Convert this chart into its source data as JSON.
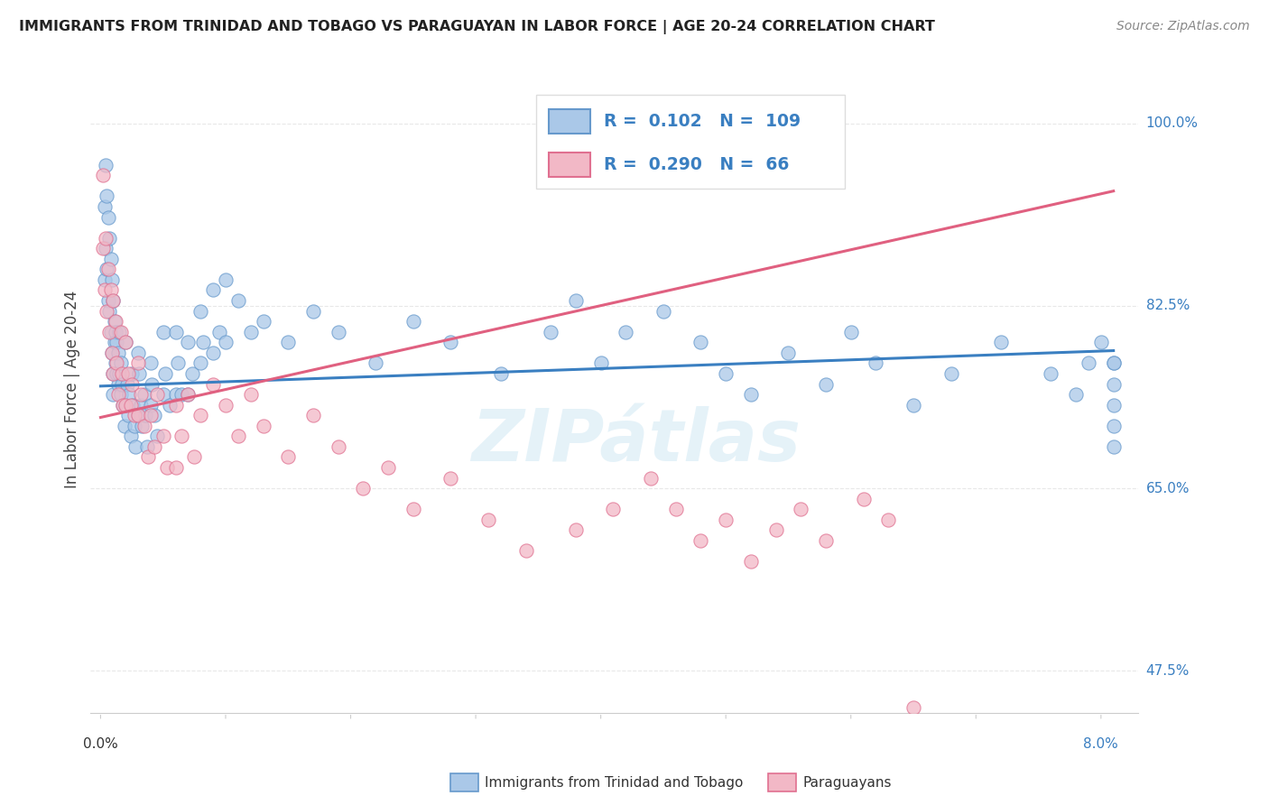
{
  "title": "IMMIGRANTS FROM TRINIDAD AND TOBAGO VS PARAGUAYAN IN LABOR FORCE | AGE 20-24 CORRELATION CHART",
  "source": "Source: ZipAtlas.com",
  "ylabel": "In Labor Force | Age 20-24",
  "bg_color": "#ffffff",
  "watermark": "ZIPátlas",
  "xlim_min": -0.0008,
  "xlim_max": 0.083,
  "ylim_min": 0.435,
  "ylim_max": 1.055,
  "ytick_positions": [
    0.475,
    0.65,
    0.825,
    1.0
  ],
  "ytick_labels": [
    "47.5%",
    "65.0%",
    "82.5%",
    "100.0%"
  ],
  "grid_color": "#e8e8e8",
  "axis_color": "#cccccc",
  "series": [
    {
      "name": "Immigrants from Trinidad and Tobago",
      "R": "0.102",
      "N": "109",
      "dot_color": "#aac8e8",
      "dot_edge_color": "#6699cc",
      "trend_color": "#3a7fc1",
      "trend_x0": 0.0,
      "trend_x1": 0.081,
      "trend_y0": 0.748,
      "trend_y1": 0.782,
      "x": [
        0.0003,
        0.0003,
        0.0004,
        0.0004,
        0.0005,
        0.0005,
        0.0006,
        0.0006,
        0.0007,
        0.0007,
        0.0008,
        0.0008,
        0.0009,
        0.0009,
        0.001,
        0.001,
        0.001,
        0.0011,
        0.0011,
        0.0012,
        0.0012,
        0.0013,
        0.0013,
        0.0014,
        0.0014,
        0.0015,
        0.0015,
        0.0016,
        0.0016,
        0.0017,
        0.0018,
        0.0019,
        0.002,
        0.002,
        0.0021,
        0.0022,
        0.0023,
        0.0024,
        0.0025,
        0.0026,
        0.0027,
        0.0028,
        0.003,
        0.003,
        0.0031,
        0.0032,
        0.0033,
        0.0035,
        0.0036,
        0.0037,
        0.004,
        0.004,
        0.0041,
        0.0043,
        0.0045,
        0.005,
        0.005,
        0.0052,
        0.0055,
        0.006,
        0.006,
        0.0062,
        0.0065,
        0.007,
        0.007,
        0.0073,
        0.008,
        0.008,
        0.0082,
        0.009,
        0.009,
        0.0095,
        0.01,
        0.01,
        0.011,
        0.012,
        0.013,
        0.015,
        0.017,
        0.019,
        0.022,
        0.025,
        0.028,
        0.032,
        0.036,
        0.038,
        0.04,
        0.042,
        0.045,
        0.048,
        0.05,
        0.052,
        0.055,
        0.058,
        0.06,
        0.062,
        0.065,
        0.068,
        0.072,
        0.076,
        0.078,
        0.079,
        0.08,
        0.081,
        0.081,
        0.081,
        0.081,
        0.081,
        0.081
      ],
      "y": [
        0.92,
        0.85,
        0.96,
        0.88,
        0.93,
        0.86,
        0.91,
        0.83,
        0.89,
        0.82,
        0.87,
        0.8,
        0.85,
        0.78,
        0.83,
        0.76,
        0.74,
        0.81,
        0.79,
        0.8,
        0.77,
        0.79,
        0.76,
        0.78,
        0.75,
        0.8,
        0.76,
        0.77,
        0.74,
        0.75,
        0.73,
        0.71,
        0.79,
        0.73,
        0.75,
        0.72,
        0.74,
        0.7,
        0.76,
        0.73,
        0.71,
        0.69,
        0.78,
        0.72,
        0.76,
        0.73,
        0.71,
        0.74,
        0.72,
        0.69,
        0.77,
        0.73,
        0.75,
        0.72,
        0.7,
        0.8,
        0.74,
        0.76,
        0.73,
        0.8,
        0.74,
        0.77,
        0.74,
        0.79,
        0.74,
        0.76,
        0.82,
        0.77,
        0.79,
        0.84,
        0.78,
        0.8,
        0.85,
        0.79,
        0.83,
        0.8,
        0.81,
        0.79,
        0.82,
        0.8,
        0.77,
        0.81,
        0.79,
        0.76,
        0.8,
        0.83,
        0.77,
        0.8,
        0.82,
        0.79,
        0.76,
        0.74,
        0.78,
        0.75,
        0.8,
        0.77,
        0.73,
        0.76,
        0.79,
        0.76,
        0.74,
        0.77,
        0.79,
        0.77,
        0.75,
        0.73,
        0.71,
        0.69,
        0.77
      ]
    },
    {
      "name": "Paraguayans",
      "R": "0.290",
      "N": "66",
      "dot_color": "#f2b8c6",
      "dot_edge_color": "#e07090",
      "trend_color": "#e06080",
      "trend_x0": 0.0,
      "trend_x1": 0.081,
      "trend_y0": 0.718,
      "trend_y1": 0.935,
      "x": [
        0.0002,
        0.0002,
        0.0003,
        0.0004,
        0.0005,
        0.0006,
        0.0007,
        0.0008,
        0.0009,
        0.001,
        0.001,
        0.0012,
        0.0013,
        0.0014,
        0.0016,
        0.0017,
        0.0018,
        0.002,
        0.002,
        0.0022,
        0.0024,
        0.0025,
        0.0027,
        0.003,
        0.003,
        0.0032,
        0.0035,
        0.0038,
        0.004,
        0.0043,
        0.0045,
        0.005,
        0.0053,
        0.006,
        0.006,
        0.0065,
        0.007,
        0.0075,
        0.008,
        0.009,
        0.01,
        0.011,
        0.012,
        0.013,
        0.015,
        0.017,
        0.019,
        0.021,
        0.023,
        0.025,
        0.028,
        0.031,
        0.034,
        0.038,
        0.041,
        0.044,
        0.046,
        0.048,
        0.05,
        0.052,
        0.054,
        0.056,
        0.058,
        0.061,
        0.063,
        0.065
      ],
      "y": [
        0.95,
        0.88,
        0.84,
        0.89,
        0.82,
        0.86,
        0.8,
        0.84,
        0.78,
        0.83,
        0.76,
        0.81,
        0.77,
        0.74,
        0.8,
        0.76,
        0.73,
        0.79,
        0.73,
        0.76,
        0.73,
        0.75,
        0.72,
        0.77,
        0.72,
        0.74,
        0.71,
        0.68,
        0.72,
        0.69,
        0.74,
        0.7,
        0.67,
        0.73,
        0.67,
        0.7,
        0.74,
        0.68,
        0.72,
        0.75,
        0.73,
        0.7,
        0.74,
        0.71,
        0.68,
        0.72,
        0.69,
        0.65,
        0.67,
        0.63,
        0.66,
        0.62,
        0.59,
        0.61,
        0.63,
        0.66,
        0.63,
        0.6,
        0.62,
        0.58,
        0.61,
        0.63,
        0.6,
        0.64,
        0.62,
        0.44
      ]
    }
  ],
  "legend_color": "#3a7fc1",
  "legend_box_color1": "#aac8e8",
  "legend_box_edge1": "#6699cc",
  "legend_box_color2": "#f2b8c6",
  "legend_box_edge2": "#e07090"
}
